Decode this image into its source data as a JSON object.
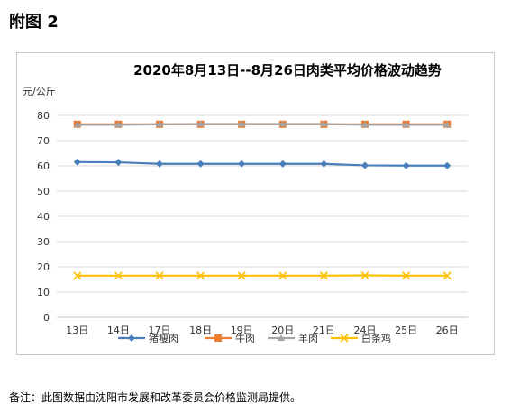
{
  "heading": "附图 2",
  "footnote": "备注：此图数据由沈阳市发展和改革委员会价格监测局提供。",
  "chart_data": {
    "type": "line",
    "title": "2020年8月13日--8月26日肉类平均价格波动趋势",
    "ylabel": "元/公斤",
    "xlabel": "",
    "ylim": [
      0,
      80
    ],
    "yticks": [
      0,
      10,
      20,
      30,
      40,
      50,
      60,
      70,
      80
    ],
    "grid": true,
    "legend": "bottom",
    "categories": [
      "13日",
      "14日",
      "17日",
      "18日",
      "19日",
      "20日",
      "21日",
      "24日",
      "25日",
      "26日"
    ],
    "series": [
      {
        "name": "猪瘦肉",
        "marker": "diamond",
        "color": "#4a7ebb",
        "values": [
          61.5,
          61.4,
          60.8,
          60.8,
          60.8,
          60.8,
          60.8,
          60.2,
          60.1,
          60.1
        ]
      },
      {
        "name": "牛肉",
        "marker": "square",
        "color": "#ed7d31",
        "values": [
          76.5,
          76.5,
          76.5,
          76.5,
          76.5,
          76.5,
          76.5,
          76.5,
          76.5,
          76.5
        ]
      },
      {
        "name": "羊肉",
        "marker": "triangle",
        "color": "#a5a5a5",
        "values": [
          76.3,
          76.3,
          76.5,
          76.6,
          76.6,
          76.6,
          76.6,
          76.3,
          76.3,
          76.3
        ]
      },
      {
        "name": "白条鸡",
        "marker": "x",
        "color": "#ffc000",
        "values": [
          16.5,
          16.5,
          16.5,
          16.5,
          16.5,
          16.5,
          16.5,
          16.6,
          16.5,
          16.5
        ]
      }
    ]
  }
}
